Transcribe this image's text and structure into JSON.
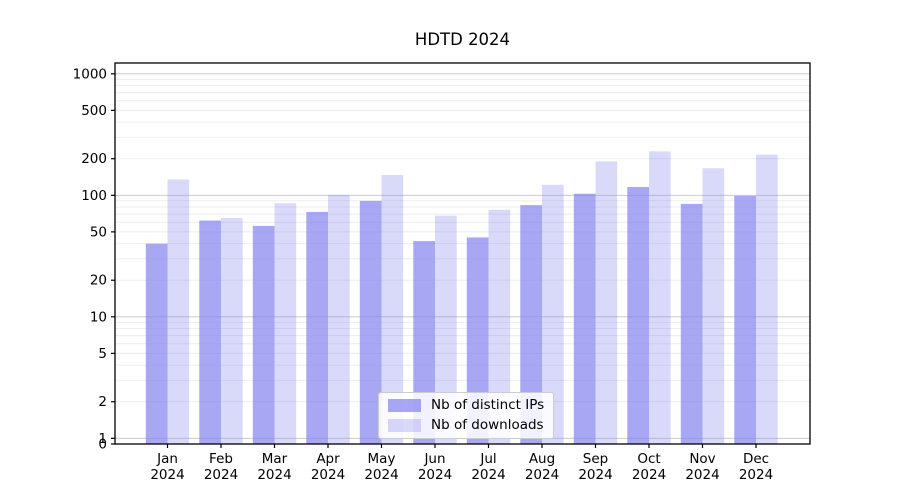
{
  "chart_data": {
    "type": "bar",
    "title": "HDTD 2024",
    "xlabel": "",
    "ylabel": "",
    "yscale": "symlog",
    "ylim": [
      0,
      1230
    ],
    "grid": true,
    "legend_position": "lower center",
    "categories": [
      "Jan",
      "Feb",
      "Mar",
      "Apr",
      "May",
      "Jun",
      "Jul",
      "Aug",
      "Sep",
      "Oct",
      "Nov",
      "Dec"
    ],
    "year_label": "2024",
    "y_ticks": [
      0,
      1,
      2,
      5,
      10,
      20,
      50,
      100,
      200,
      500,
      1000
    ],
    "series": [
      {
        "name": "Nb of distinct IPs",
        "color": "rgba(130,130,238,0.7)",
        "values": [
          40,
          62,
          56,
          73,
          90,
          42,
          45,
          83,
          103,
          117,
          85,
          99
        ]
      },
      {
        "name": "Nb of downloads",
        "color": "rgba(130,130,238,0.3)",
        "values": [
          135,
          65,
          86,
          101,
          147,
          68,
          76,
          122,
          190,
          230,
          167,
          216
        ]
      }
    ],
    "colors": {
      "bar_base": "#8282ee",
      "grid_minor": "#ebebeb",
      "grid_major": "#c4c4c4",
      "axis": "#000000",
      "text": "#000000"
    }
  }
}
